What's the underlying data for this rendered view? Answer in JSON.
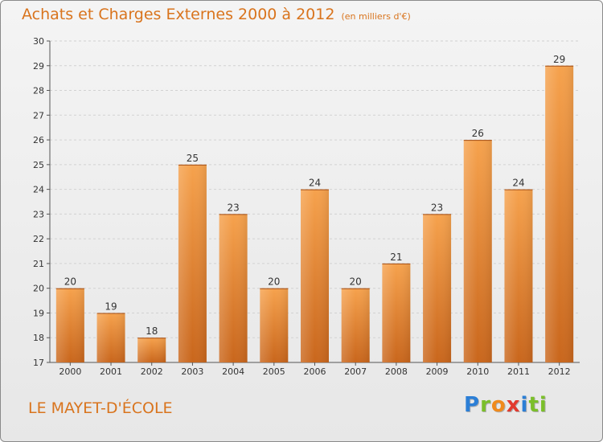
{
  "title": "Achats et Charges Externes 2000 à 2012",
  "unit_note": "(en milliers d'€)",
  "commune": "LE MAYET-D'ÉCOLE",
  "logo": {
    "text": "Proxiti",
    "letters": [
      "P",
      "r",
      "o",
      "x",
      "i",
      "ti"
    ]
  },
  "colors": {
    "bar_top": "#f6a24d",
    "bar_bottom": "#c9661c",
    "title": "#d9741d",
    "grid": "#d2d2d2"
  },
  "chart_data": {
    "type": "bar",
    "categories": [
      "2000",
      "2001",
      "2002",
      "2003",
      "2004",
      "2005",
      "2006",
      "2007",
      "2008",
      "2009",
      "2010",
      "2011",
      "2012"
    ],
    "values": [
      20,
      19,
      18,
      25,
      23,
      20,
      24,
      20,
      21,
      23,
      26,
      24,
      29
    ],
    "title": "Achats et Charges Externes 2000 à 2012",
    "xlabel": "",
    "ylabel": "",
    "ylim": [
      17,
      30
    ],
    "yticks": [
      17,
      18,
      19,
      20,
      21,
      22,
      23,
      24,
      25,
      26,
      27,
      28,
      29,
      30
    ],
    "grid": "horizontal dashed",
    "data_labels": true
  }
}
